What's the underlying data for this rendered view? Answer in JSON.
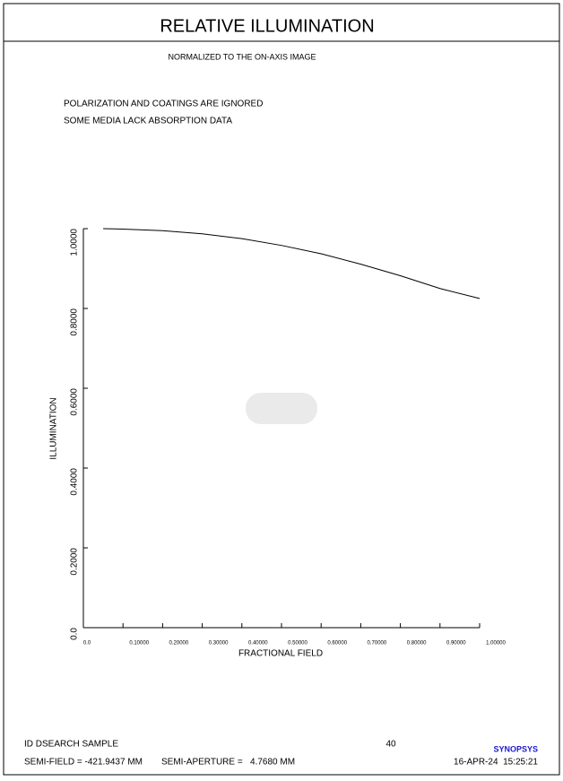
{
  "chart_data": {
    "type": "line",
    "title": "RELATIVE ILLUMINATION",
    "subtitle": "NORMALIZED TO THE ON-AXIS IMAGE",
    "annotations": [
      "POLARIZATION AND COATINGS ARE IGNORED",
      "SOME MEDIA LACK ABSORPTION DATA"
    ],
    "xlabel": "FRACTIONAL FIELD",
    "ylabel": "ILLUMINATION",
    "x": [
      0.05,
      0.1,
      0.2,
      0.3,
      0.4,
      0.5,
      0.6,
      0.7,
      0.8,
      0.9,
      1.0
    ],
    "series": [
      {
        "color": "#000000",
        "values": [
          1.0,
          0.999,
          0.995,
          0.987,
          0.975,
          0.958,
          0.937,
          0.911,
          0.882,
          0.85,
          0.825
        ]
      }
    ],
    "xlim": [
      0,
      1
    ],
    "ylim": [
      0,
      1
    ],
    "xticks": [
      {
        "value": 0,
        "label": "0.0"
      },
      {
        "value": 0.1,
        "label": "0.10000"
      },
      {
        "value": 0.2,
        "label": "0.20000"
      },
      {
        "value": 0.3,
        "label": "0.30000"
      },
      {
        "value": 0.4,
        "label": "0.40000"
      },
      {
        "value": 0.5,
        "label": "0.50000"
      },
      {
        "value": 0.6,
        "label": "0.60000"
      },
      {
        "value": 0.7,
        "label": "0.70000"
      },
      {
        "value": 0.8,
        "label": "0.80000"
      },
      {
        "value": 0.9,
        "label": "0.90000"
      },
      {
        "value": 1,
        "label": "1.00000"
      }
    ],
    "yticks": [
      {
        "value": 0,
        "label": "0.0"
      },
      {
        "value": 0.2,
        "label": "0.2000"
      },
      {
        "value": 0.4,
        "label": "0.4000"
      },
      {
        "value": 0.6,
        "label": "0.6000"
      },
      {
        "value": 0.8,
        "label": "0.8000"
      },
      {
        "value": 1,
        "label": "1.0000"
      }
    ],
    "grid": false
  },
  "footer": {
    "id": "ID DSEARCH SAMPLE",
    "page": "40",
    "logo": "SYNOPSYS",
    "semi_field": "SEMI-FIELD = -421.9437 MM",
    "semi_aperture": "SEMI-APERTURE =   4.7680 MM",
    "date": "16-APR-24  15:25:21"
  }
}
